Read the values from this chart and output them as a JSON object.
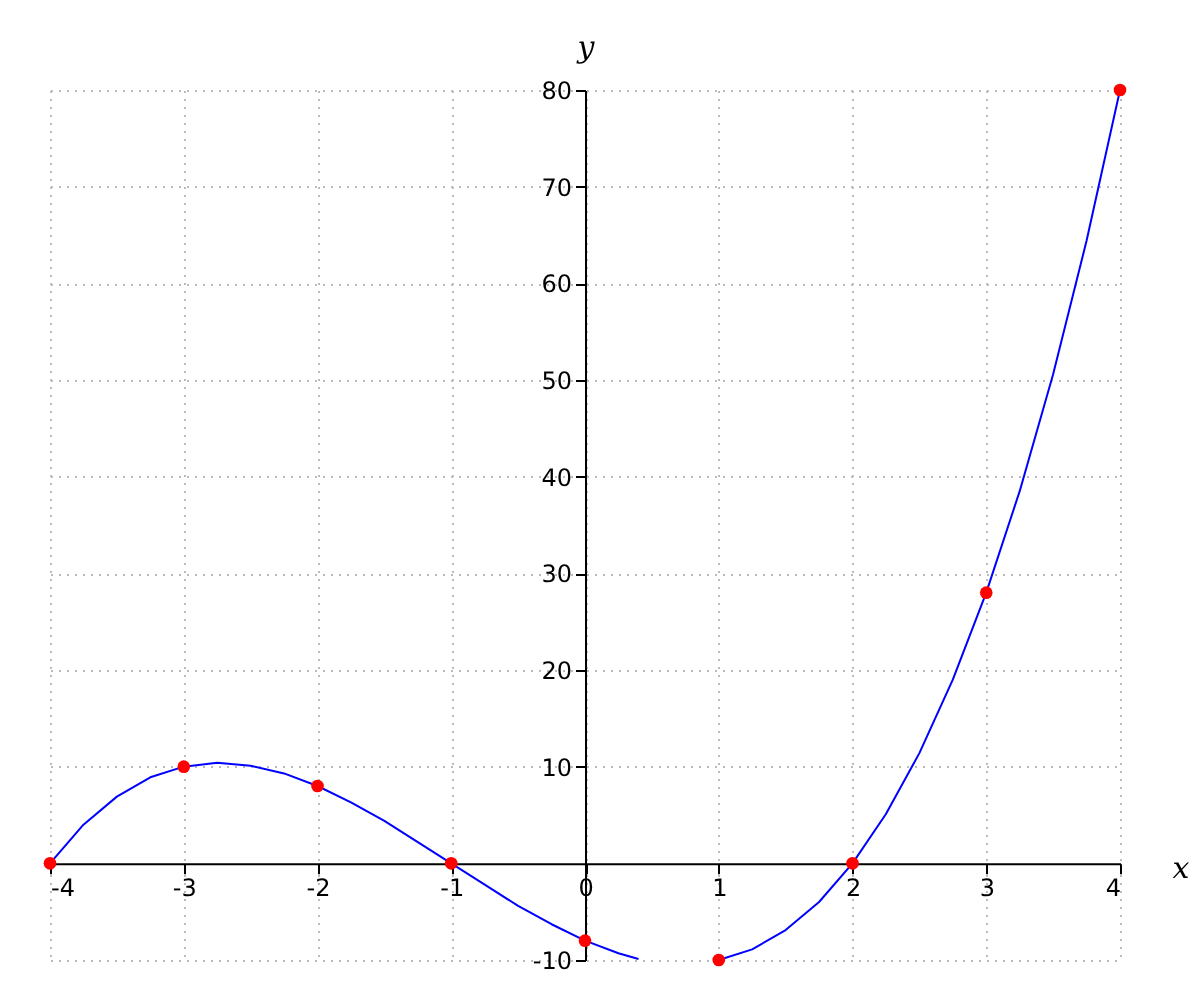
{
  "chart_data": {
    "type": "scatter",
    "xlabel": "x",
    "ylabel": "y",
    "xlim": [
      -4,
      4
    ],
    "ylim": [
      -10,
      80
    ],
    "xticks": [
      -4,
      -3,
      -2,
      -1,
      0,
      1,
      2,
      3,
      4
    ],
    "yticks": [
      -10,
      10,
      20,
      30,
      40,
      50,
      60,
      70,
      80
    ],
    "grid": true,
    "series": [
      {
        "type": "line",
        "color": "#0000ff",
        "marker": "none",
        "x": [
          -4,
          -3.75,
          -3.5,
          -3.25,
          -3,
          -2.75,
          -2.5,
          -2.25,
          -2,
          -1.75,
          -1.5,
          -1.25,
          -1,
          -0.75,
          -0.5,
          -0.25,
          0,
          0.25,
          0.4,
          0.7,
          1,
          1.25,
          1.5,
          1.75,
          2,
          2.25,
          2.5,
          2.75,
          3,
          3.25,
          3.5,
          3.75,
          4
        ],
        "values": [
          0,
          4.0,
          6.9,
          8.9,
          10,
          10.4,
          10.1,
          9.3,
          8,
          6.3,
          4.4,
          2.2,
          0,
          -2.2,
          -4.4,
          -6.3,
          -8,
          -9.3,
          -9.9,
          null,
          -10,
          -8.9,
          -6.9,
          -4.0,
          0,
          5.1,
          11.4,
          19.0,
          28,
          38.5,
          50.6,
          64.4,
          80
        ]
      },
      {
        "color": "#ff0000",
        "marker": "circle",
        "x": [
          -4,
          -3,
          -2,
          -1,
          0,
          1,
          2,
          3,
          4
        ],
        "values": [
          0,
          10,
          8,
          0,
          -8,
          -10,
          0,
          28,
          80
        ]
      }
    ]
  }
}
